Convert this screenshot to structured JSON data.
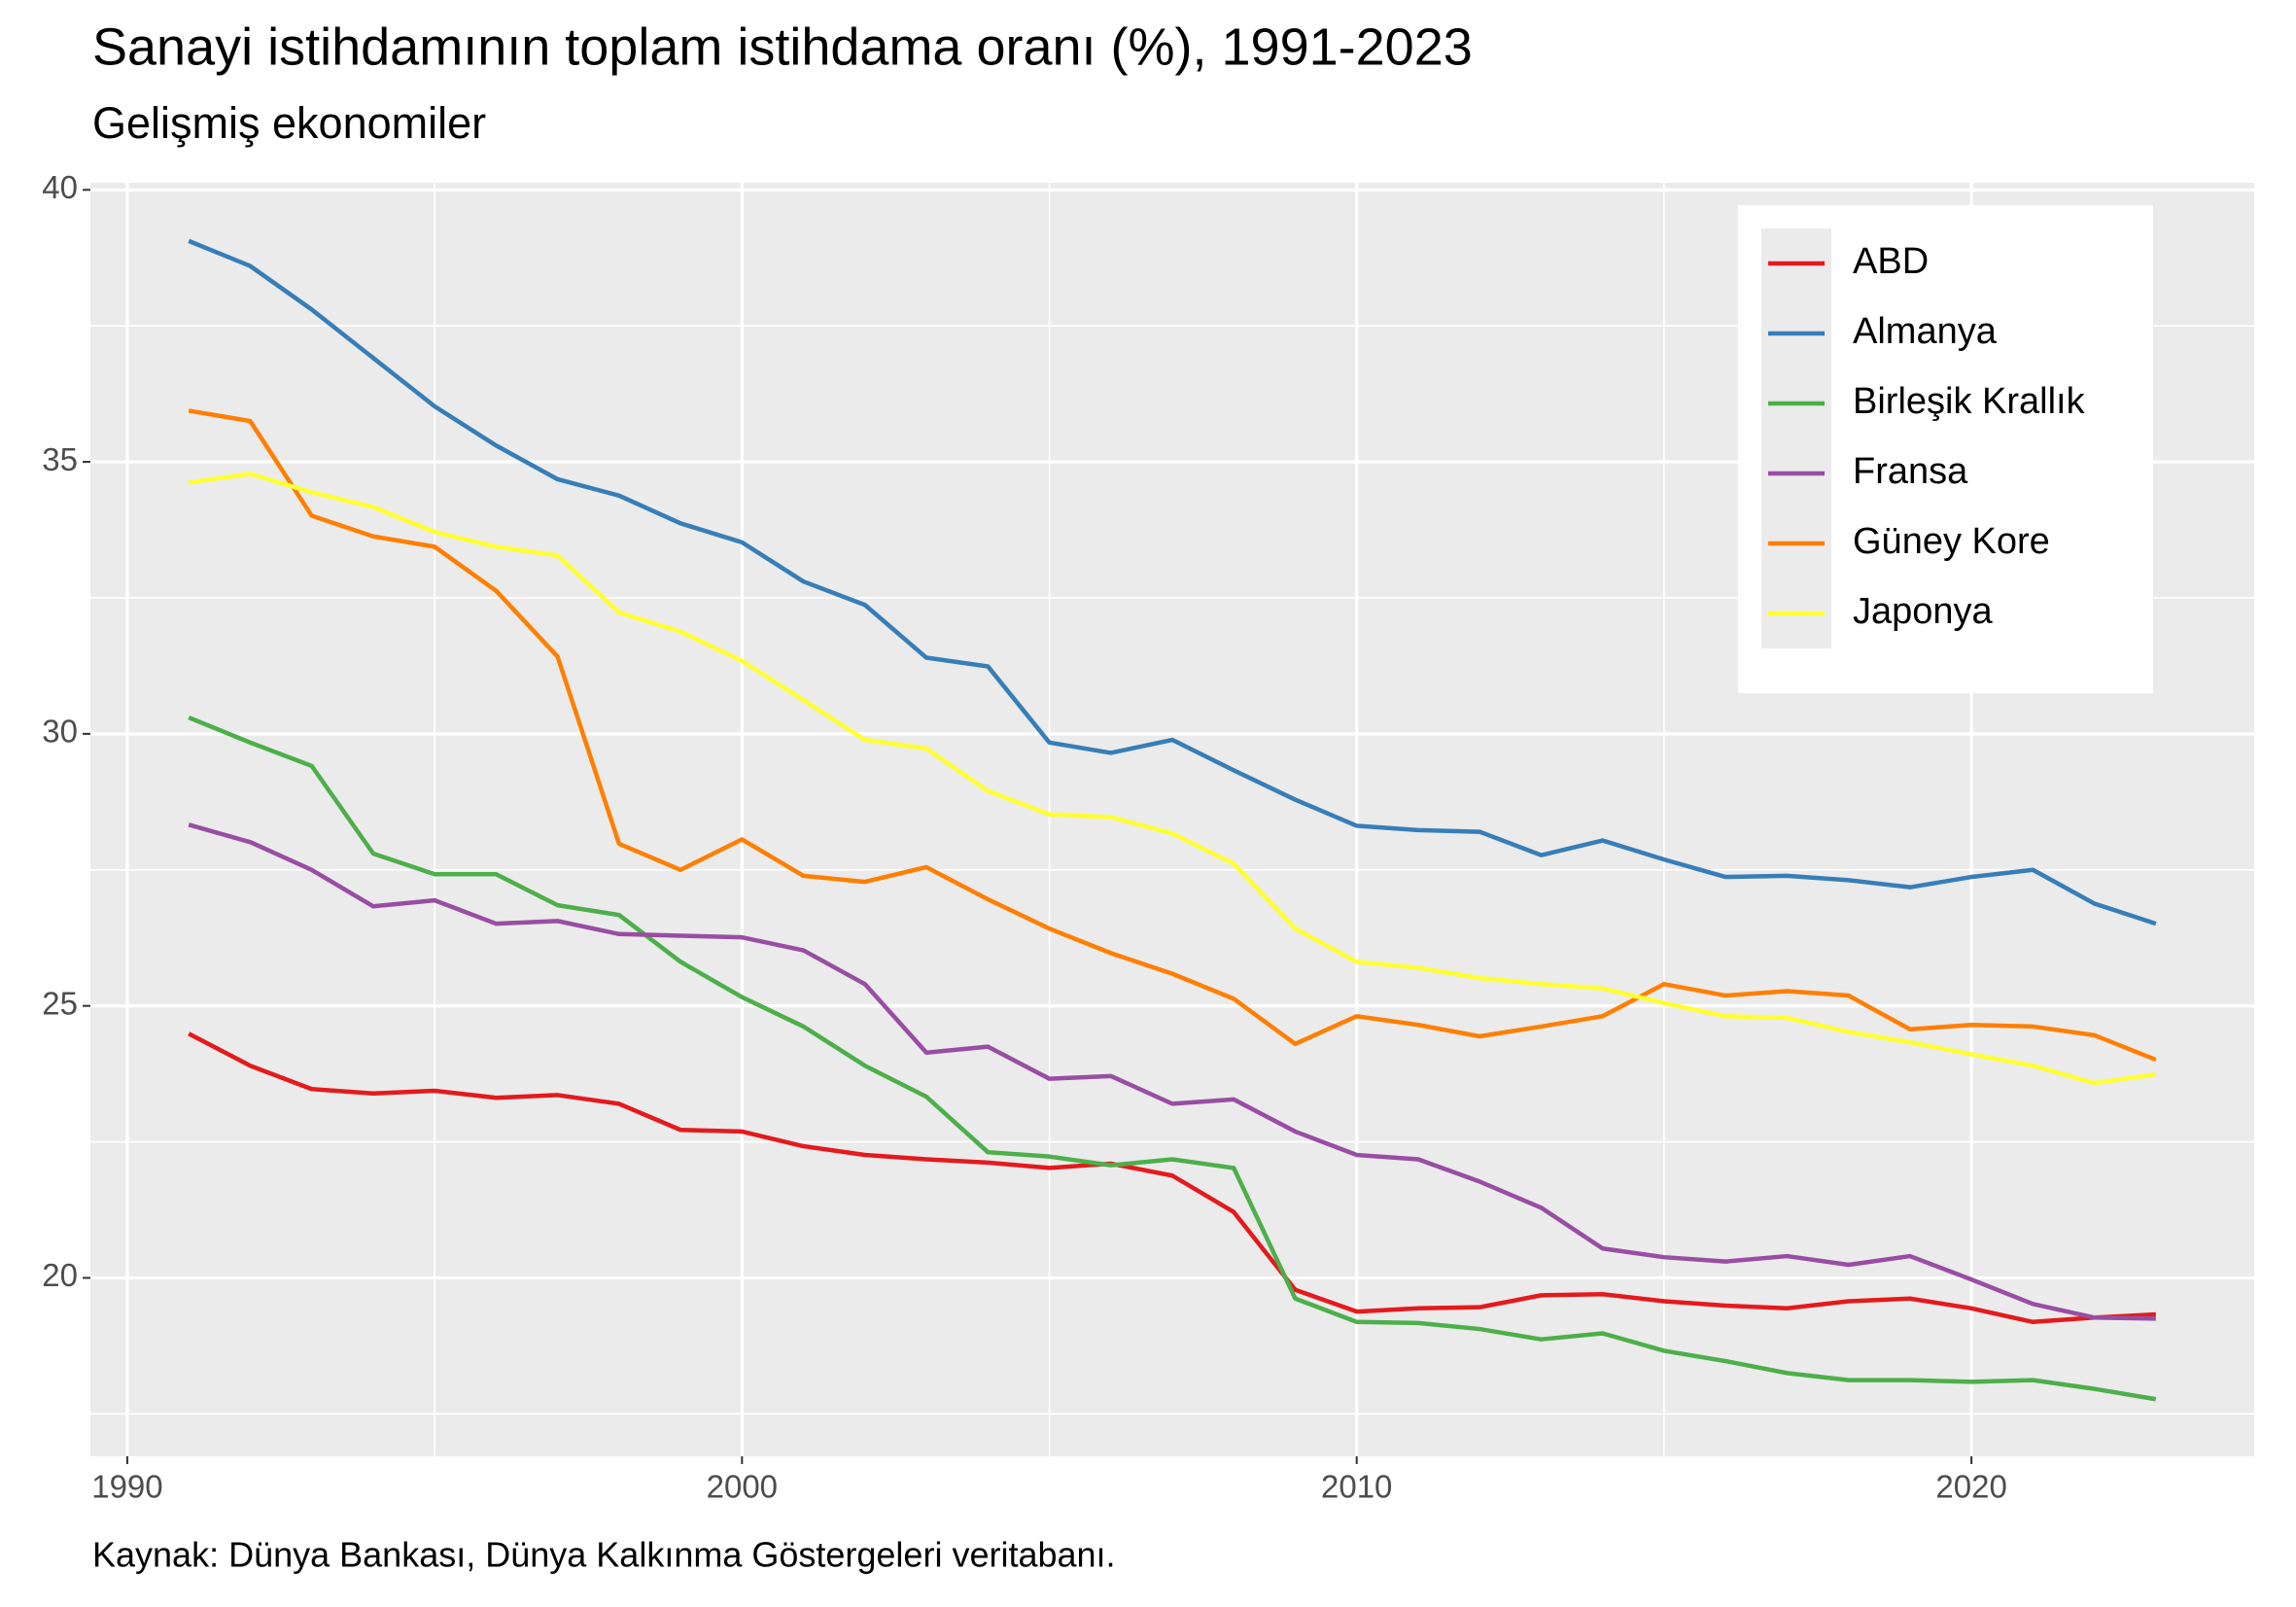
{
  "chart_data": {
    "type": "line",
    "title": "Sanayi istihdamının toplam istihdama oranı (%), 1991-2023",
    "subtitle": "Gelişmiş ekonomiler",
    "caption": "Kaynak: Dünya Bankası, Dünya Kalkınma Göstergeleri veritabanı.",
    "x": [
      1991,
      1992,
      1993,
      1994,
      1995,
      1996,
      1997,
      1998,
      1999,
      2000,
      2001,
      2002,
      2003,
      2004,
      2005,
      2006,
      2007,
      2008,
      2009,
      2010,
      2011,
      2012,
      2013,
      2014,
      2015,
      2016,
      2017,
      2018,
      2019,
      2020,
      2021,
      2022,
      2023
    ],
    "xlim": [
      1989.4,
      2024.6
    ],
    "xticks": [
      1990,
      2000,
      2010,
      2020
    ],
    "ylim": [
      16.72,
      40.13
    ],
    "yticks": [
      20,
      25,
      30,
      35,
      40
    ],
    "grid": true,
    "legend": "top-right",
    "series": [
      {
        "name": "ABD",
        "color": "#e41a1c",
        "values": [
          24.49,
          23.9,
          23.47,
          23.39,
          23.44,
          23.31,
          23.36,
          23.2,
          22.72,
          22.69,
          22.42,
          22.26,
          22.18,
          22.12,
          22.02,
          22.1,
          21.88,
          21.21,
          19.78,
          19.38,
          19.44,
          19.46,
          19.68,
          19.7,
          19.57,
          19.49,
          19.44,
          19.57,
          19.62,
          19.44,
          19.19,
          19.27,
          19.33
        ]
      },
      {
        "name": "Almanya",
        "color": "#377eb8",
        "values": [
          39.06,
          38.6,
          37.8,
          36.91,
          36.02,
          35.3,
          34.68,
          34.38,
          33.87,
          33.52,
          32.8,
          32.37,
          31.4,
          31.24,
          29.84,
          29.65,
          29.89,
          29.33,
          28.79,
          28.31,
          28.23,
          28.2,
          27.77,
          28.04,
          27.69,
          27.37,
          27.39,
          27.31,
          27.18,
          27.37,
          27.5,
          26.88,
          26.51
        ]
      },
      {
        "name": "Birleşik Krallık",
        "color": "#4daf4a",
        "values": [
          30.3,
          29.84,
          29.41,
          27.8,
          27.42,
          27.42,
          26.85,
          26.67,
          25.81,
          25.16,
          24.62,
          23.9,
          23.33,
          22.31,
          22.23,
          22.07,
          22.18,
          22.02,
          19.62,
          19.19,
          19.17,
          19.06,
          18.87,
          18.98,
          18.66,
          18.47,
          18.25,
          18.12,
          18.12,
          18.09,
          18.12,
          17.96,
          17.77
        ]
      },
      {
        "name": "Fransa",
        "color": "#984ea3",
        "values": [
          28.33,
          28.01,
          27.5,
          26.83,
          26.94,
          26.51,
          26.56,
          26.32,
          26.29,
          26.26,
          26.02,
          25.4,
          24.14,
          24.25,
          23.66,
          23.71,
          23.2,
          23.28,
          22.69,
          22.26,
          22.18,
          21.77,
          21.29,
          20.54,
          20.38,
          20.3,
          20.4,
          20.24,
          20.4,
          19.97,
          19.52,
          19.27,
          19.25
        ]
      },
      {
        "name": "Güney Kore",
        "color": "#ff7f00",
        "values": [
          35.94,
          35.75,
          34.01,
          33.63,
          33.44,
          32.63,
          31.42,
          27.98,
          27.5,
          28.06,
          27.39,
          27.28,
          27.55,
          26.96,
          26.42,
          25.97,
          25.59,
          25.13,
          24.3,
          24.81,
          24.65,
          24.44,
          24.62,
          24.81,
          25.4,
          25.19,
          25.27,
          25.19,
          24.57,
          24.65,
          24.62,
          24.46,
          24.01
        ]
      },
      {
        "name": "Japonya",
        "color": "#ffff33",
        "values": [
          34.62,
          34.78,
          34.44,
          34.17,
          33.71,
          33.44,
          33.28,
          32.23,
          31.88,
          31.34,
          30.62,
          29.89,
          29.73,
          28.95,
          28.52,
          28.47,
          28.17,
          27.61,
          26.42,
          25.81,
          25.7,
          25.51,
          25.4,
          25.32,
          25.05,
          24.81,
          24.78,
          24.52,
          24.33,
          24.11,
          23.9,
          23.58,
          23.74
        ]
      }
    ]
  }
}
